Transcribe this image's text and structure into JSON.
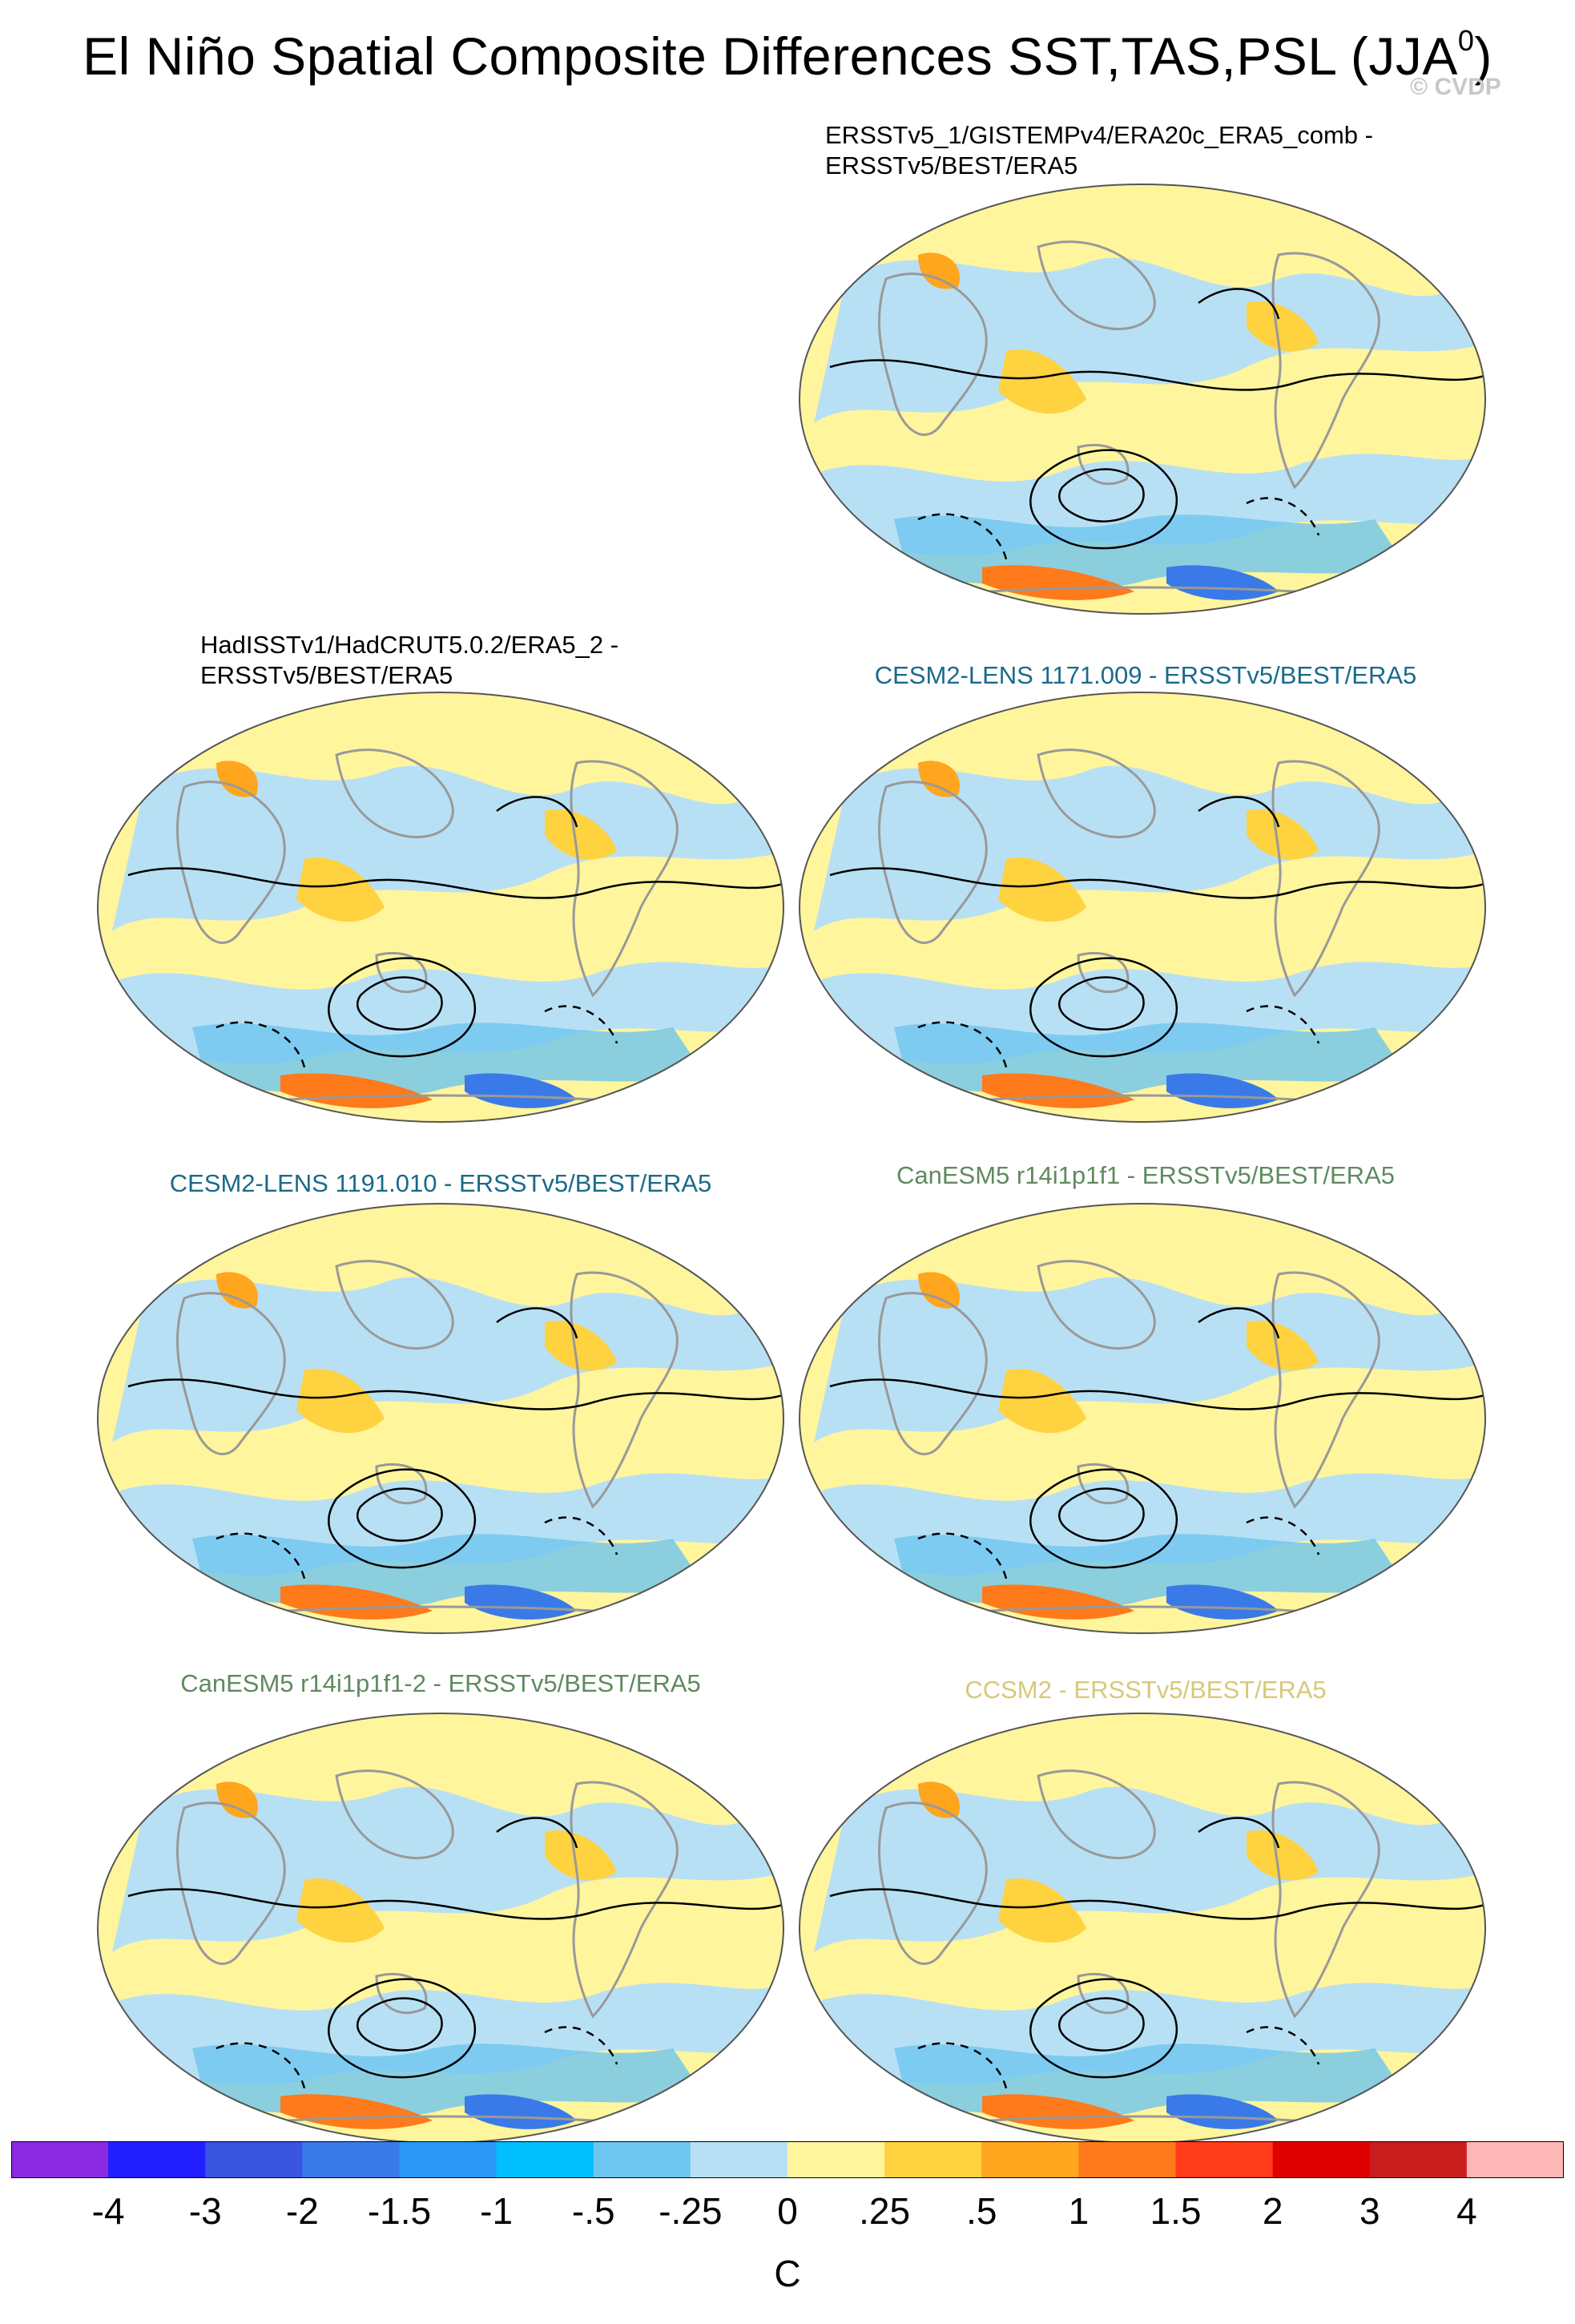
{
  "title": "El Niño Spatial Composite Differences SST,TAS,PSL (JJA",
  "title_superscript": "0",
  "title_close": ")",
  "watermark": "© CVDP",
  "panels": [
    {
      "label_line1": "ERSSTv5_1/GISTEMPv4/ERA20c_ERA5_comb -",
      "label_line2": "ERSSTv5/BEST/ERA5",
      "label_color": "#000000"
    },
    {
      "label_line1": "HadISSTv1/HadCRUT5.0.2/ERA5_2 -",
      "label_line2": "ERSSTv5/BEST/ERA5",
      "label_color": "#000000"
    },
    {
      "label_line1": "CESM2-LENS 1171.009 - ERSSTv5/BEST/ERA5",
      "label_line2": "",
      "label_color": "#1a6a8a"
    },
    {
      "label_line1": "CESM2-LENS 1191.010 - ERSSTv5/BEST/ERA5",
      "label_line2": "",
      "label_color": "#1a6a8a"
    },
    {
      "label_line1": "CanESM5 r14i1p1f1 - ERSSTv5/BEST/ERA5",
      "label_line2": "",
      "label_color": "#5f8a5f"
    },
    {
      "label_line1": "CanESM5 r14i1p1f1-2 - ERSSTv5/BEST/ERA5",
      "label_line2": "",
      "label_color": "#5f8a5f"
    },
    {
      "label_line1": "CCSM2 - ERSSTv5/BEST/ERA5",
      "label_line2": "",
      "label_color": "#d8c878"
    }
  ],
  "colorbar": {
    "colors": [
      "#8a2be2",
      "#1f1fff",
      "#3a55e0",
      "#3a7ae8",
      "#2a96f5",
      "#00bfff",
      "#6ec6f0",
      "#b8e0f5",
      "#fff59d",
      "#ffd23f",
      "#ffa51e",
      "#ff7a1a",
      "#ff3c1a",
      "#e00000",
      "#c81e1e",
      "#ffb6b6"
    ],
    "tick_labels": [
      "-4",
      "-3",
      "-2",
      "-1.5",
      "-1",
      "-.5",
      "-.25",
      "0",
      ".25",
      ".5",
      "1",
      "1.5",
      "2",
      "3",
      "4"
    ],
    "unit": "C"
  }
}
